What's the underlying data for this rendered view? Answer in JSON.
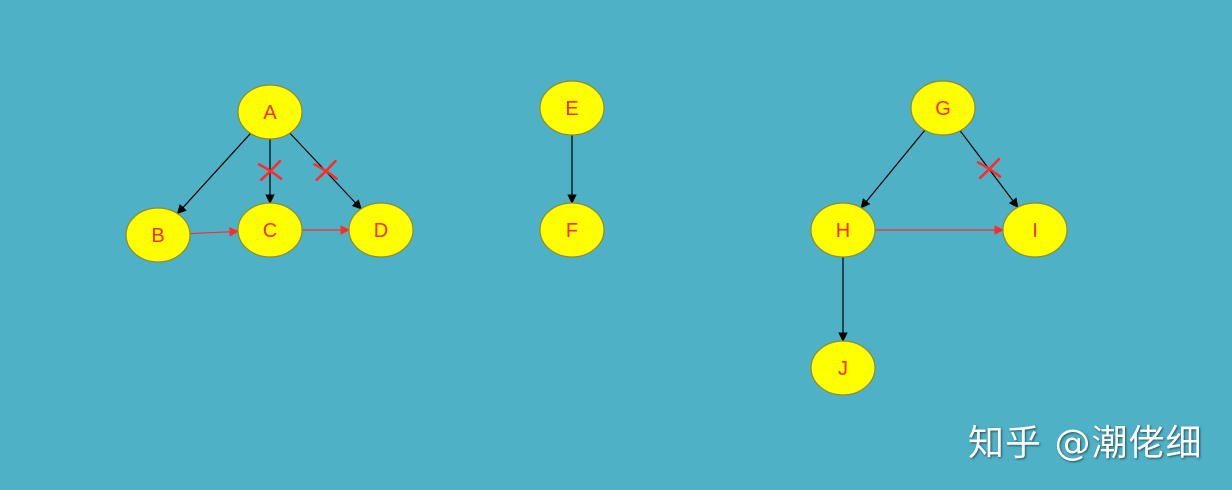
{
  "colors": {
    "background": "#4fb1c6",
    "node_fill": "#ffff00",
    "node_stroke": "#8a8a3a",
    "label": "#ff2a2a",
    "black_edge": "#000000",
    "red_edge": "#ff2a2a",
    "cross": "#ff2a2a"
  },
  "nodes": [
    {
      "id": "A",
      "label": "A"
    },
    {
      "id": "B",
      "label": "B"
    },
    {
      "id": "C",
      "label": "C"
    },
    {
      "id": "D",
      "label": "D"
    },
    {
      "id": "E",
      "label": "E"
    },
    {
      "id": "F",
      "label": "F"
    },
    {
      "id": "G",
      "label": "G"
    },
    {
      "id": "H",
      "label": "H"
    },
    {
      "id": "I",
      "label": "I"
    },
    {
      "id": "J",
      "label": "J"
    }
  ],
  "edges": [
    {
      "from": "A",
      "to": "B",
      "color": "black",
      "crossed": false
    },
    {
      "from": "A",
      "to": "C",
      "color": "black",
      "crossed": true
    },
    {
      "from": "A",
      "to": "D",
      "color": "black",
      "crossed": true
    },
    {
      "from": "B",
      "to": "C",
      "color": "red",
      "crossed": false
    },
    {
      "from": "C",
      "to": "D",
      "color": "red",
      "crossed": false
    },
    {
      "from": "E",
      "to": "F",
      "color": "black",
      "crossed": false
    },
    {
      "from": "G",
      "to": "H",
      "color": "black",
      "crossed": false
    },
    {
      "from": "G",
      "to": "I",
      "color": "black",
      "crossed": true
    },
    {
      "from": "H",
      "to": "I",
      "color": "red",
      "crossed": false
    },
    {
      "from": "H",
      "to": "J",
      "color": "black",
      "crossed": false
    }
  ],
  "watermark": {
    "text": "知乎 @潮佬细"
  }
}
